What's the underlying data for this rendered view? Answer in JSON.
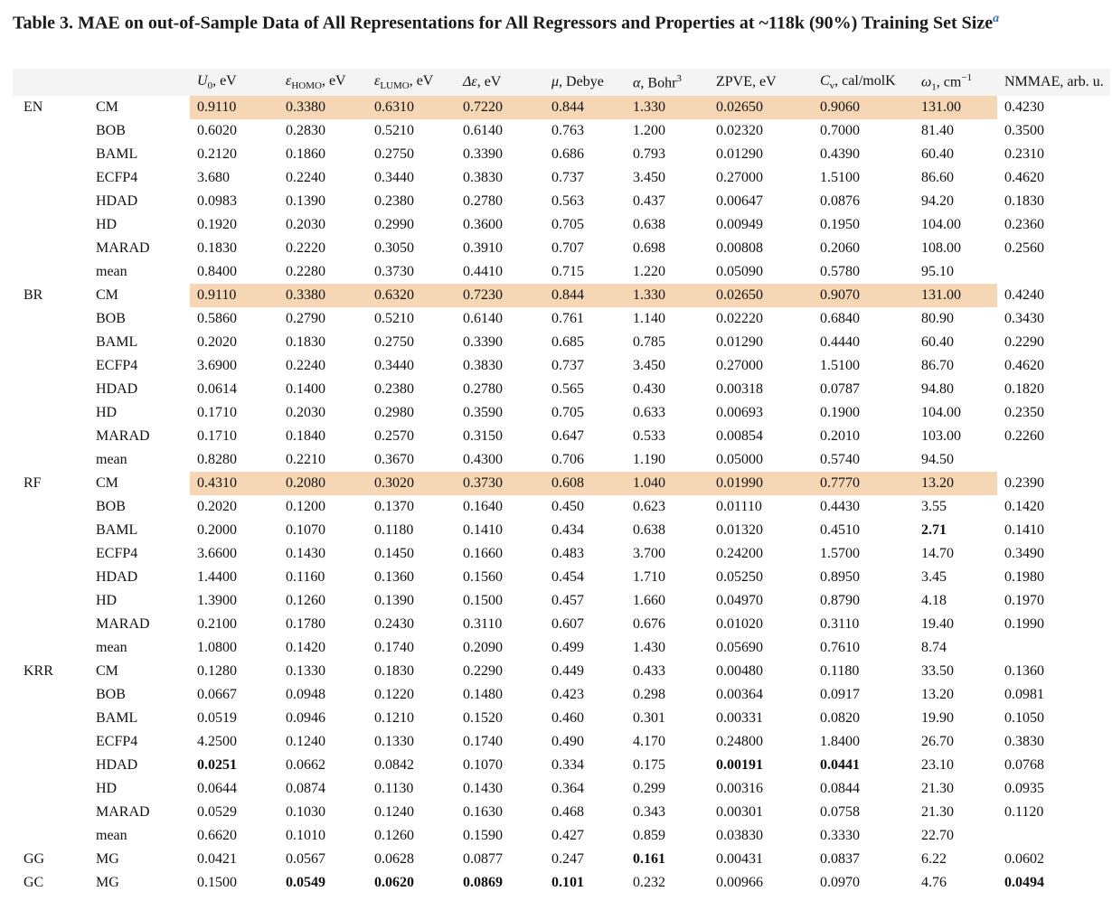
{
  "title": "Table 3. MAE on out-of-Sample Data of All Representations for All Regressors and Properties at ~118k (90%) Training Set Size",
  "title_footnote": "a",
  "table": {
    "columns": [
      {
        "sym": "U",
        "sub": "0",
        "unit": ", eV"
      },
      {
        "sym": "ε",
        "sub": "HOMO",
        "unit": ", eV"
      },
      {
        "sym": "ε",
        "sub": "LUMO",
        "unit": ", eV"
      },
      {
        "sym": "Δε",
        "sub": "",
        "unit": ", eV"
      },
      {
        "sym": "μ",
        "sub": "",
        "unit": ", Debye"
      },
      {
        "sym": "α",
        "sub": "",
        "unit": ", Bohr",
        "sup": "3"
      },
      {
        "sym": "",
        "sub": "",
        "unit": "ZPVE, eV"
      },
      {
        "sym": "C",
        "sub": "v",
        "unit": ", cal/molK"
      },
      {
        "sym": "ω",
        "sub": "1",
        "unit": ", cm",
        "sup": "−1"
      },
      {
        "sym": "",
        "sub": "",
        "unit": "NMMAE, arb. u."
      }
    ],
    "groups": [
      {
        "name": "EN",
        "rows": [
          {
            "rep": "CM",
            "highlight": true,
            "values": [
              "0.9110",
              "0.3380",
              "0.6310",
              "0.7220",
              "0.844",
              "1.330",
              "0.02650",
              "0.9060",
              "131.00",
              "0.4230"
            ]
          },
          {
            "rep": "BOB",
            "values": [
              "0.6020",
              "0.2830",
              "0.5210",
              "0.6140",
              "0.763",
              "1.200",
              "0.02320",
              "0.7000",
              "81.40",
              "0.3500"
            ]
          },
          {
            "rep": "BAML",
            "values": [
              "0.2120",
              "0.1860",
              "0.2750",
              "0.3390",
              "0.686",
              "0.793",
              "0.01290",
              "0.4390",
              "60.40",
              "0.2310"
            ]
          },
          {
            "rep": "ECFP4",
            "values": [
              "3.680",
              "0.2240",
              "0.3440",
              "0.3830",
              "0.737",
              "3.450",
              "0.27000",
              "1.5100",
              "86.60",
              "0.4620"
            ]
          },
          {
            "rep": "HDAD",
            "values": [
              "0.0983",
              "0.1390",
              "0.2380",
              "0.2780",
              "0.563",
              "0.437",
              "0.00647",
              "0.0876",
              "94.20",
              "0.1830"
            ]
          },
          {
            "rep": "HD",
            "values": [
              "0.1920",
              "0.2030",
              "0.2990",
              "0.3600",
              "0.705",
              "0.638",
              "0.00949",
              "0.1950",
              "104.00",
              "0.2360"
            ]
          },
          {
            "rep": "MARAD",
            "values": [
              "0.1830",
              "0.2220",
              "0.3050",
              "0.3910",
              "0.707",
              "0.698",
              "0.00808",
              "0.2060",
              "108.00",
              "0.2560"
            ]
          },
          {
            "rep": "mean",
            "values": [
              "0.8400",
              "0.2280",
              "0.3730",
              "0.4410",
              "0.715",
              "1.220",
              "0.05090",
              "0.5780",
              "95.10",
              ""
            ]
          }
        ]
      },
      {
        "name": "BR",
        "rows": [
          {
            "rep": "CM",
            "highlight": true,
            "values": [
              "0.9110",
              "0.3380",
              "0.6320",
              "0.7230",
              "0.844",
              "1.330",
              "0.02650",
              "0.9070",
              "131.00",
              "0.4240"
            ]
          },
          {
            "rep": "BOB",
            "values": [
              "0.5860",
              "0.2790",
              "0.5210",
              "0.6140",
              "0.761",
              "1.140",
              "0.02220",
              "0.6840",
              "80.90",
              "0.3430"
            ]
          },
          {
            "rep": "BAML",
            "values": [
              "0.2020",
              "0.1830",
              "0.2750",
              "0.3390",
              "0.685",
              "0.785",
              "0.01290",
              "0.4440",
              "60.40",
              "0.2290"
            ]
          },
          {
            "rep": "ECFP4",
            "values": [
              "3.6900",
              "0.2240",
              "0.3440",
              "0.3830",
              "0.737",
              "3.450",
              "0.27000",
              "1.5100",
              "86.70",
              "0.4620"
            ]
          },
          {
            "rep": "HDAD",
            "values": [
              "0.0614",
              "0.1400",
              "0.2380",
              "0.2780",
              "0.565",
              "0.430",
              "0.00318",
              "0.0787",
              "94.80",
              "0.1820"
            ]
          },
          {
            "rep": "HD",
            "values": [
              "0.1710",
              "0.2030",
              "0.2980",
              "0.3590",
              "0.705",
              "0.633",
              "0.00693",
              "0.1900",
              "104.00",
              "0.2350"
            ]
          },
          {
            "rep": "MARAD",
            "values": [
              "0.1710",
              "0.1840",
              "0.2570",
              "0.3150",
              "0.647",
              "0.533",
              "0.00854",
              "0.2010",
              "103.00",
              "0.2260"
            ]
          },
          {
            "rep": "mean",
            "values": [
              "0.8280",
              "0.2210",
              "0.3670",
              "0.4300",
              "0.706",
              "1.190",
              "0.05000",
              "0.5740",
              "94.50",
              ""
            ]
          }
        ]
      },
      {
        "name": "RF",
        "rows": [
          {
            "rep": "CM",
            "highlight": true,
            "values": [
              "0.4310",
              "0.2080",
              "0.3020",
              "0.3730",
              "0.608",
              "1.040",
              "0.01990",
              "0.7770",
              "13.20",
              "0.2390"
            ]
          },
          {
            "rep": "BOB",
            "values": [
              "0.2020",
              "0.1200",
              "0.1370",
              "0.1640",
              "0.450",
              "0.623",
              "0.01110",
              "0.4430",
              "3.55",
              "0.1420"
            ]
          },
          {
            "rep": "BAML",
            "values": [
              "0.2000",
              "0.1070",
              "0.1180",
              "0.1410",
              "0.434",
              "0.638",
              "0.01320",
              "0.4510",
              "2.71",
              "0.1410"
            ],
            "bold": [
              8
            ]
          },
          {
            "rep": "ECFP4",
            "values": [
              "3.6600",
              "0.1430",
              "0.1450",
              "0.1660",
              "0.483",
              "3.700",
              "0.24200",
              "1.5700",
              "14.70",
              "0.3490"
            ]
          },
          {
            "rep": "HDAD",
            "values": [
              "1.4400",
              "0.1160",
              "0.1360",
              "0.1560",
              "0.454",
              "1.710",
              "0.05250",
              "0.8950",
              "3.45",
              "0.1980"
            ]
          },
          {
            "rep": "HD",
            "values": [
              "1.3900",
              "0.1260",
              "0.1390",
              "0.1500",
              "0.457",
              "1.660",
              "0.04970",
              "0.8790",
              "4.18",
              "0.1970"
            ]
          },
          {
            "rep": "MARAD",
            "values": [
              "0.2100",
              "0.1780",
              "0.2430",
              "0.3110",
              "0.607",
              "0.676",
              "0.01020",
              "0.3110",
              "19.40",
              "0.1990"
            ]
          },
          {
            "rep": "mean",
            "values": [
              "1.0800",
              "0.1420",
              "0.1740",
              "0.2090",
              "0.499",
              "1.430",
              "0.05690",
              "0.7610",
              "8.74",
              ""
            ]
          }
        ]
      },
      {
        "name": "KRR",
        "rows": [
          {
            "rep": "CM",
            "values": [
              "0.1280",
              "0.1330",
              "0.1830",
              "0.2290",
              "0.449",
              "0.433",
              "0.00480",
              "0.1180",
              "33.50",
              "0.1360"
            ]
          },
          {
            "rep": "BOB",
            "values": [
              "0.0667",
              "0.0948",
              "0.1220",
              "0.1480",
              "0.423",
              "0.298",
              "0.00364",
              "0.0917",
              "13.20",
              "0.0981"
            ]
          },
          {
            "rep": "BAML",
            "values": [
              "0.0519",
              "0.0946",
              "0.1210",
              "0.1520",
              "0.460",
              "0.301",
              "0.00331",
              "0.0820",
              "19.90",
              "0.1050"
            ]
          },
          {
            "rep": "ECFP4",
            "values": [
              "4.2500",
              "0.1240",
              "0.1330",
              "0.1740",
              "0.490",
              "4.170",
              "0.24800",
              "1.8400",
              "26.70",
              "0.3830"
            ]
          },
          {
            "rep": "HDAD",
            "values": [
              "0.0251",
              "0.0662",
              "0.0842",
              "0.1070",
              "0.334",
              "0.175",
              "0.00191",
              "0.0441",
              "23.10",
              "0.0768"
            ],
            "bold": [
              0,
              6,
              7
            ]
          },
          {
            "rep": "HD",
            "values": [
              "0.0644",
              "0.0874",
              "0.1130",
              "0.1430",
              "0.364",
              "0.299",
              "0.00316",
              "0.0844",
              "21.30",
              "0.0935"
            ]
          },
          {
            "rep": "MARAD",
            "values": [
              "0.0529",
              "0.1030",
              "0.1240",
              "0.1630",
              "0.468",
              "0.343",
              "0.00301",
              "0.0758",
              "21.30",
              "0.1120"
            ]
          },
          {
            "rep": "mean",
            "values": [
              "0.6620",
              "0.1010",
              "0.1260",
              "0.1590",
              "0.427",
              "0.859",
              "0.03830",
              "0.3330",
              "22.70",
              ""
            ]
          }
        ]
      },
      {
        "name": "GG",
        "rows": [
          {
            "rep": "MG",
            "values": [
              "0.0421",
              "0.0567",
              "0.0628",
              "0.0877",
              "0.247",
              "0.161",
              "0.00431",
              "0.0837",
              "6.22",
              "0.0602"
            ],
            "bold": [
              5
            ]
          }
        ]
      },
      {
        "name": "GC",
        "rows": [
          {
            "rep": "MG",
            "values": [
              "0.1500",
              "0.0549",
              "0.0620",
              "0.0869",
              "0.101",
              "0.232",
              "0.00966",
              "0.0970",
              "4.76",
              "0.0494"
            ],
            "bold": [
              1,
              2,
              3,
              4,
              9
            ]
          }
        ]
      }
    ]
  }
}
